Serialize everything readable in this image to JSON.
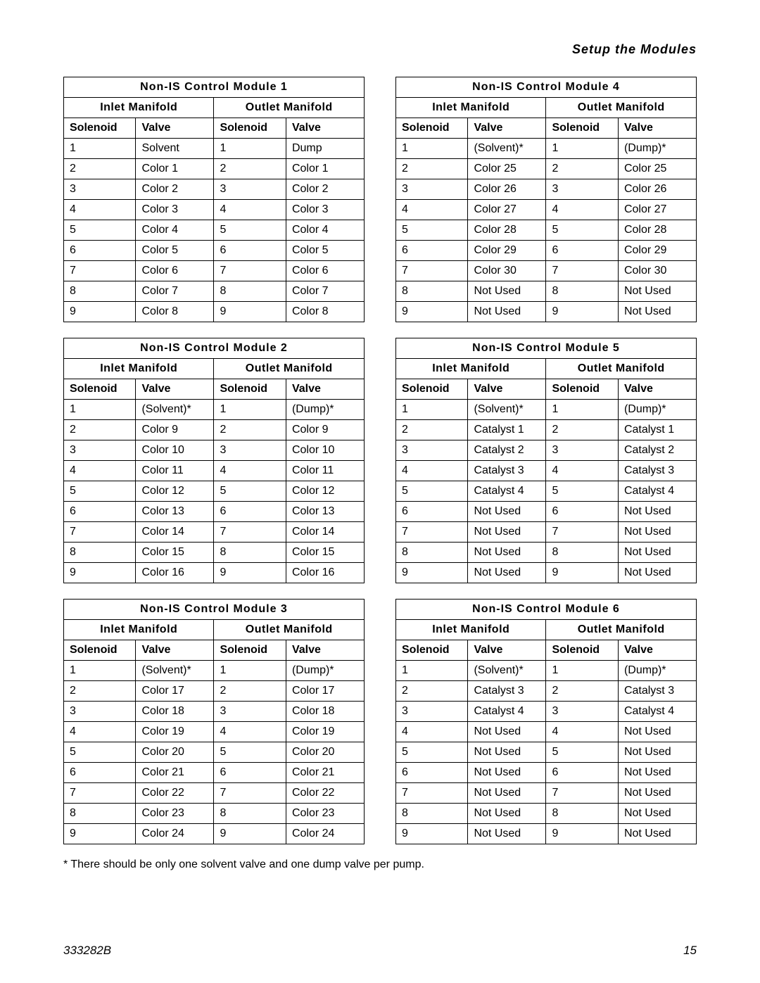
{
  "header_title": "Setup the Modules",
  "column_headers": {
    "inlet_manifold": "Inlet Manifold",
    "outlet_manifold": "Outlet Manifold",
    "solenoid": "Solenoid",
    "valve": "Valve"
  },
  "footnote": "* There should be only one solvent valve and one dump valve per pump.",
  "footer": {
    "doc_id": "333282B",
    "page_number": "15"
  },
  "modules": [
    {
      "title": "Non-IS Control Module 1",
      "rows": [
        {
          "in_sol": "1",
          "in_val": "Solvent",
          "out_sol": "1",
          "out_val": "Dump"
        },
        {
          "in_sol": "2",
          "in_val": "Color 1",
          "out_sol": "2",
          "out_val": "Color 1"
        },
        {
          "in_sol": "3",
          "in_val": "Color 2",
          "out_sol": "3",
          "out_val": "Color 2"
        },
        {
          "in_sol": "4",
          "in_val": "Color 3",
          "out_sol": "4",
          "out_val": "Color 3"
        },
        {
          "in_sol": "5",
          "in_val": "Color 4",
          "out_sol": "5",
          "out_val": "Color 4"
        },
        {
          "in_sol": "6",
          "in_val": "Color 5",
          "out_sol": "6",
          "out_val": "Color 5"
        },
        {
          "in_sol": "7",
          "in_val": "Color 6",
          "out_sol": "7",
          "out_val": "Color 6"
        },
        {
          "in_sol": "8",
          "in_val": "Color 7",
          "out_sol": "8",
          "out_val": "Color 7"
        },
        {
          "in_sol": "9",
          "in_val": "Color 8",
          "out_sol": "9",
          "out_val": "Color 8"
        }
      ]
    },
    {
      "title": "Non-IS Control Module 4",
      "rows": [
        {
          "in_sol": "1",
          "in_val": "(Solvent)*",
          "out_sol": "1",
          "out_val": "(Dump)*"
        },
        {
          "in_sol": "2",
          "in_val": "Color 25",
          "out_sol": "2",
          "out_val": "Color 25"
        },
        {
          "in_sol": "3",
          "in_val": "Color 26",
          "out_sol": "3",
          "out_val": "Color 26"
        },
        {
          "in_sol": "4",
          "in_val": "Color 27",
          "out_sol": "4",
          "out_val": "Color 27"
        },
        {
          "in_sol": "5",
          "in_val": "Color 28",
          "out_sol": "5",
          "out_val": "Color 28"
        },
        {
          "in_sol": "6",
          "in_val": "Color 29",
          "out_sol": "6",
          "out_val": "Color 29"
        },
        {
          "in_sol": "7",
          "in_val": "Color 30",
          "out_sol": "7",
          "out_val": "Color 30"
        },
        {
          "in_sol": "8",
          "in_val": "Not Used",
          "out_sol": "8",
          "out_val": "Not Used"
        },
        {
          "in_sol": "9",
          "in_val": "Not Used",
          "out_sol": "9",
          "out_val": "Not Used"
        }
      ]
    },
    {
      "title": "Non-IS Control Module 2",
      "rows": [
        {
          "in_sol": "1",
          "in_val": "(Solvent)*",
          "out_sol": "1",
          "out_val": "(Dump)*"
        },
        {
          "in_sol": "2",
          "in_val": "Color 9",
          "out_sol": "2",
          "out_val": "Color 9"
        },
        {
          "in_sol": "3",
          "in_val": "Color 10",
          "out_sol": "3",
          "out_val": "Color 10"
        },
        {
          "in_sol": "4",
          "in_val": "Color 11",
          "out_sol": "4",
          "out_val": "Color 11"
        },
        {
          "in_sol": "5",
          "in_val": "Color 12",
          "out_sol": "5",
          "out_val": "Color 12"
        },
        {
          "in_sol": "6",
          "in_val": "Color 13",
          "out_sol": "6",
          "out_val": "Color 13"
        },
        {
          "in_sol": "7",
          "in_val": "Color 14",
          "out_sol": "7",
          "out_val": "Color 14"
        },
        {
          "in_sol": "8",
          "in_val": "Color 15",
          "out_sol": "8",
          "out_val": "Color 15"
        },
        {
          "in_sol": "9",
          "in_val": "Color 16",
          "out_sol": "9",
          "out_val": "Color 16"
        }
      ]
    },
    {
      "title": "Non-IS Control Module 5",
      "rows": [
        {
          "in_sol": "1",
          "in_val": "(Solvent)*",
          "out_sol": "1",
          "out_val": "(Dump)*"
        },
        {
          "in_sol": "2",
          "in_val": "Catalyst 1",
          "out_sol": "2",
          "out_val": "Catalyst 1"
        },
        {
          "in_sol": "3",
          "in_val": "Catalyst 2",
          "out_sol": "3",
          "out_val": "Catalyst 2"
        },
        {
          "in_sol": "4",
          "in_val": "Catalyst 3",
          "out_sol": "4",
          "out_val": "Catalyst 3"
        },
        {
          "in_sol": "5",
          "in_val": "Catalyst 4",
          "out_sol": "5",
          "out_val": "Catalyst 4"
        },
        {
          "in_sol": "6",
          "in_val": "Not Used",
          "out_sol": "6",
          "out_val": "Not Used"
        },
        {
          "in_sol": "7",
          "in_val": "Not Used",
          "out_sol": "7",
          "out_val": "Not Used"
        },
        {
          "in_sol": "8",
          "in_val": "Not Used",
          "out_sol": "8",
          "out_val": "Not Used"
        },
        {
          "in_sol": "9",
          "in_val": "Not Used",
          "out_sol": "9",
          "out_val": "Not Used"
        }
      ]
    },
    {
      "title": "Non-IS Control Module 3",
      "rows": [
        {
          "in_sol": "1",
          "in_val": "(Solvent)*",
          "out_sol": "1",
          "out_val": "(Dump)*"
        },
        {
          "in_sol": "2",
          "in_val": "Color 17",
          "out_sol": "2",
          "out_val": "Color 17"
        },
        {
          "in_sol": "3",
          "in_val": "Color 18",
          "out_sol": "3",
          "out_val": "Color 18"
        },
        {
          "in_sol": "4",
          "in_val": "Color 19",
          "out_sol": "4",
          "out_val": "Color 19"
        },
        {
          "in_sol": "5",
          "in_val": "Color 20",
          "out_sol": "5",
          "out_val": "Color 20"
        },
        {
          "in_sol": "6",
          "in_val": "Color 21",
          "out_sol": "6",
          "out_val": "Color 21"
        },
        {
          "in_sol": "7",
          "in_val": "Color 22",
          "out_sol": "7",
          "out_val": "Color 22"
        },
        {
          "in_sol": "8",
          "in_val": "Color 23",
          "out_sol": "8",
          "out_val": "Color 23"
        },
        {
          "in_sol": "9",
          "in_val": "Color 24",
          "out_sol": "9",
          "out_val": "Color 24"
        }
      ]
    },
    {
      "title": "Non-IS Control Module 6",
      "rows": [
        {
          "in_sol": "1",
          "in_val": "(Solvent)*",
          "out_sol": "1",
          "out_val": "(Dump)*"
        },
        {
          "in_sol": "2",
          "in_val": "Catalyst 3",
          "out_sol": "2",
          "out_val": "Catalyst 3"
        },
        {
          "in_sol": "3",
          "in_val": "Catalyst 4",
          "out_sol": "3",
          "out_val": "Catalyst 4"
        },
        {
          "in_sol": "4",
          "in_val": "Not Used",
          "out_sol": "4",
          "out_val": "Not Used"
        },
        {
          "in_sol": "5",
          "in_val": "Not Used",
          "out_sol": "5",
          "out_val": "Not Used"
        },
        {
          "in_sol": "6",
          "in_val": "Not Used",
          "out_sol": "6",
          "out_val": "Not Used"
        },
        {
          "in_sol": "7",
          "in_val": "Not Used",
          "out_sol": "7",
          "out_val": "Not Used"
        },
        {
          "in_sol": "8",
          "in_val": "Not Used",
          "out_sol": "8",
          "out_val": "Not Used"
        },
        {
          "in_sol": "9",
          "in_val": "Not Used",
          "out_sol": "9",
          "out_val": "Not Used"
        }
      ]
    }
  ]
}
